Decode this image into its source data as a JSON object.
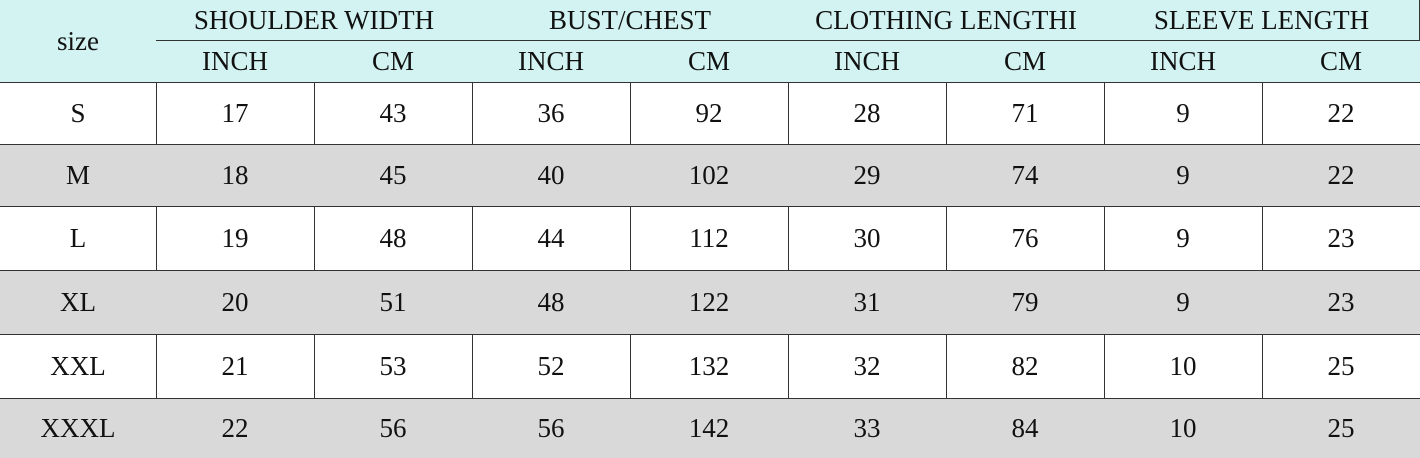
{
  "header": {
    "size": "size",
    "groups": [
      {
        "title": "SHOULDER WIDTH",
        "units": [
          "INCH",
          "CM"
        ]
      },
      {
        "title": "BUST/CHEST",
        "units": [
          "INCH",
          "CM"
        ]
      },
      {
        "title": "CLOTHING LENGTHI",
        "units": [
          "INCH",
          "CM"
        ]
      },
      {
        "title": "SLEEVE LENGTH",
        "units": [
          "INCH",
          "CM"
        ]
      }
    ]
  },
  "table": {
    "rows": [
      {
        "size": "S",
        "values": [
          17,
          43,
          36,
          92,
          28,
          71,
          9,
          22
        ]
      },
      {
        "size": "M",
        "values": [
          18,
          45,
          40,
          102,
          29,
          74,
          9,
          22
        ]
      },
      {
        "size": "L",
        "values": [
          19,
          48,
          44,
          112,
          30,
          76,
          9,
          23
        ]
      },
      {
        "size": "XL",
        "values": [
          20,
          51,
          48,
          122,
          31,
          79,
          9,
          23
        ]
      },
      {
        "size": "XXL",
        "values": [
          21,
          53,
          52,
          132,
          32,
          82,
          10,
          25
        ]
      },
      {
        "size": "XXXL",
        "values": [
          22,
          56,
          56,
          142,
          33,
          84,
          10,
          25
        ]
      }
    ]
  }
}
